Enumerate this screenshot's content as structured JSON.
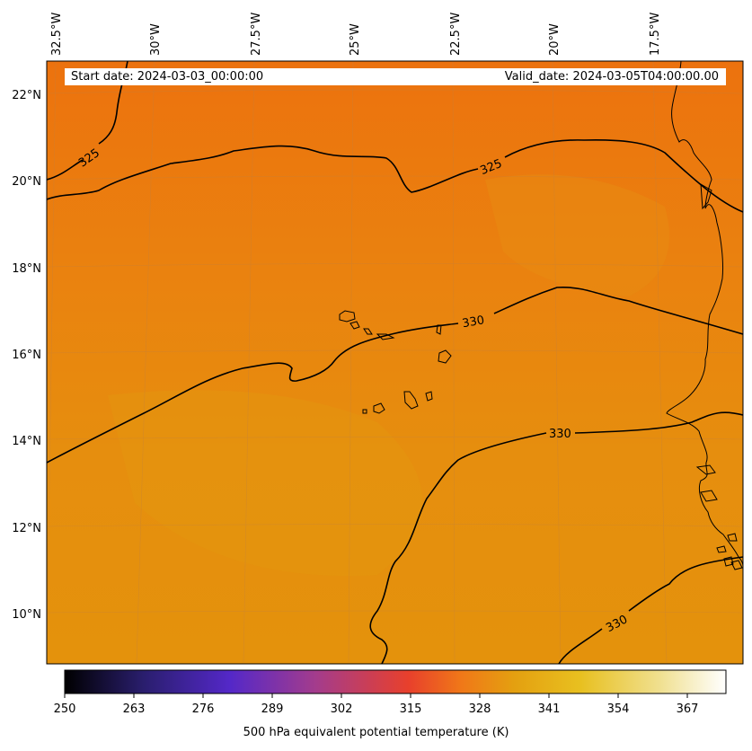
{
  "map": {
    "start_date_text": "Start date: 2024-03-03_00:00:00",
    "valid_date_text": "Valid_date: 2024-03-05T04:00:00.00",
    "field": "500 hPa equivalent potential temperature (K)",
    "extent": {
      "lon_min": -32.8,
      "lon_max": -15.6,
      "lat_min": 8.9,
      "lat_max": 22.8
    },
    "longitude_labels": [
      "32.5°W",
      "30°W",
      "27.5°W",
      "25°W",
      "22.5°W",
      "20°W",
      "17.5°W"
    ],
    "latitude_labels": [
      "22°N",
      "20°N",
      "18°N",
      "16°N",
      "14°N",
      "12°N",
      "10°N"
    ],
    "contour_labels": [
      {
        "level": "325",
        "text": "325"
      },
      {
        "level": "325",
        "text": "325"
      },
      {
        "level": "330",
        "text": "330"
      },
      {
        "level": "330",
        "text": "330"
      },
      {
        "level": "330",
        "text": "330"
      }
    ],
    "background_colors": {
      "dominant": "#e88a10",
      "north": "#ec7410",
      "south": "#e4940c"
    }
  },
  "colorbar": {
    "ticks": [
      "250",
      "263",
      "276",
      "289",
      "302",
      "315",
      "328",
      "341",
      "354",
      "367"
    ],
    "min": 250,
    "max": 374,
    "colors": [
      "#000000",
      "#2a1e6e",
      "#5428c8",
      "#a43c8c",
      "#e8402c",
      "#f07818",
      "#e4a010",
      "#e8c020",
      "#f0e090",
      "#ffffff"
    ],
    "label": "500 hPa equivalent potential temperature (K)"
  }
}
